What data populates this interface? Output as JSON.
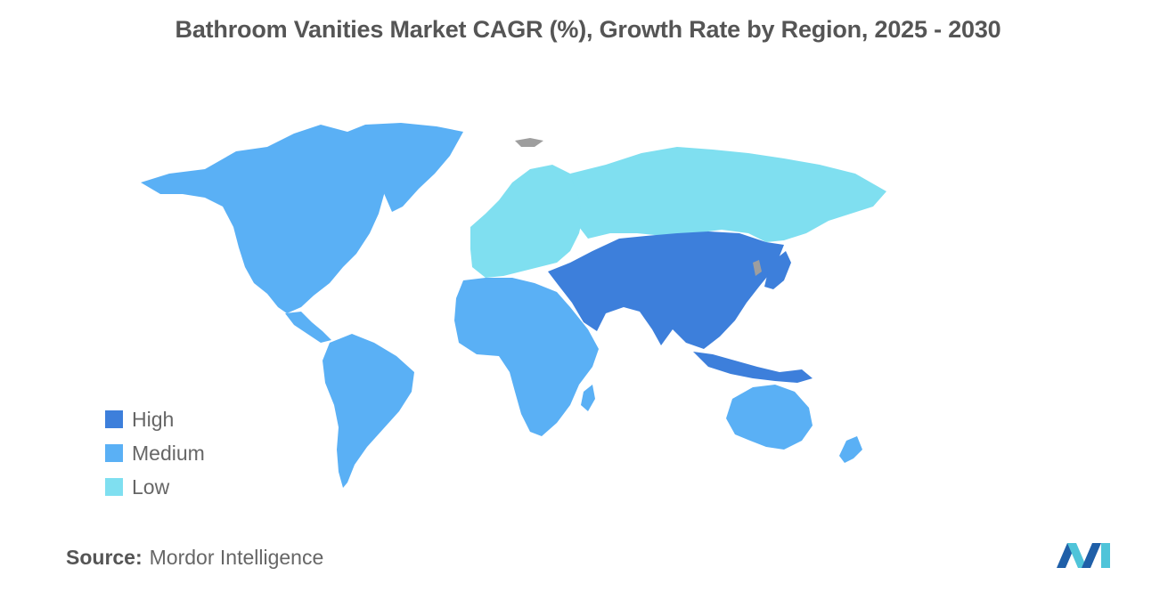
{
  "title": "Bathroom Vanities Market CAGR (%), Growth Rate by Region, 2025 - 2030",
  "legend": [
    {
      "label": "High",
      "color": "#3d7fdb"
    },
    {
      "label": "Medium",
      "color": "#5ab0f5"
    },
    {
      "label": "Low",
      "color": "#7fdff0"
    }
  ],
  "no_data_color": "#9e9e9e",
  "source": {
    "label": "Source:",
    "text": "Mordor Intelligence"
  },
  "logo": {
    "name": "mordor-intelligence-logo",
    "colors": [
      "#1f5fa8",
      "#4fc4d9"
    ]
  }
}
